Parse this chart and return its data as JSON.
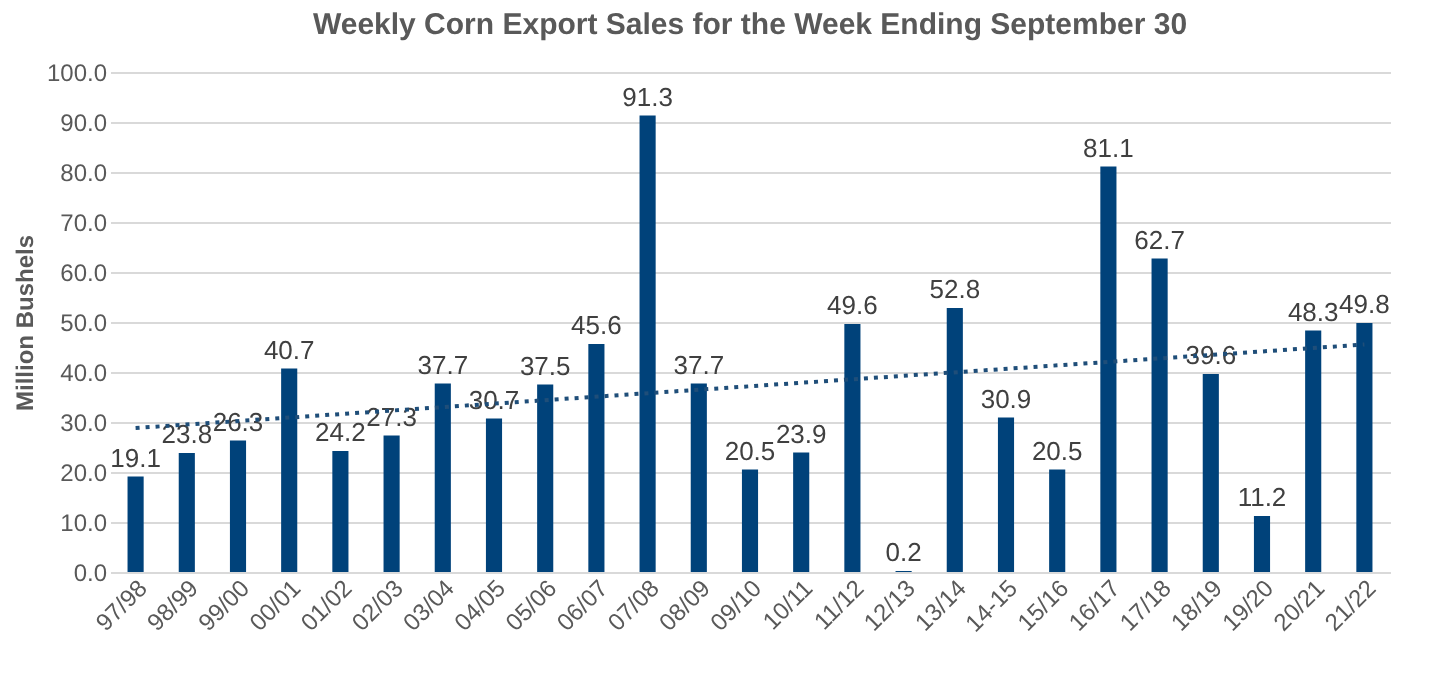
{
  "chart_data": {
    "type": "bar",
    "title": "Weekly Corn Export Sales for the Week Ending September 30",
    "ylabel": "Million Bushels",
    "categories": [
      "97/98",
      "98/99",
      "99/00",
      "00/01",
      "01/02",
      "02/03",
      "03/04",
      "04/05",
      "05/06",
      "06/07",
      "07/08",
      "08/09",
      "09/10",
      "10/11",
      "11/12",
      "12/13",
      "13/14",
      "14-15",
      "15/16",
      "16/17",
      "17/18",
      "18/19",
      "19/20",
      "20/21",
      "21/22"
    ],
    "series": [
      {
        "color": "#00427a",
        "values": [
          19.1,
          23.8,
          26.3,
          40.7,
          24.2,
          27.3,
          37.7,
          30.7,
          37.5,
          45.6,
          91.3,
          37.7,
          20.5,
          23.9,
          49.6,
          0.2,
          52.8,
          30.9,
          20.5,
          81.1,
          62.7,
          39.6,
          11.2,
          48.3,
          49.8
        ],
        "value_labels": [
          "19.1",
          "23.8",
          "26.3",
          "40.7",
          "24.2",
          "27.3",
          "37.7",
          "30.7",
          "37.5",
          "45.6",
          "91.3",
          "37.7",
          "20.5",
          "23.9",
          "49.6",
          "0.2",
          "52.8",
          "30.9",
          "20.5",
          "81.1",
          "62.7",
          "39.6",
          "11.2",
          "48.3",
          "49.8"
        ]
      },
      {
        "type": "line",
        "color": "#1f4e79",
        "line_style": "dotted",
        "x": [
          "97/98",
          "21/22"
        ],
        "values": [
          28.8,
          45.5
        ]
      }
    ],
    "ylim": [
      0,
      100
    ],
    "yticks": [
      {
        "value": 0,
        "label": "0.0"
      },
      {
        "value": 10,
        "label": "10.0"
      },
      {
        "value": 20,
        "label": "20.0"
      },
      {
        "value": 30,
        "label": "30.0"
      },
      {
        "value": 40,
        "label": "40.0"
      },
      {
        "value": 50,
        "label": "50.0"
      },
      {
        "value": 60,
        "label": "60.0"
      },
      {
        "value": 70,
        "label": "70.0"
      },
      {
        "value": 80,
        "label": "80.0"
      },
      {
        "value": 90,
        "label": "90.0"
      },
      {
        "value": 100,
        "label": "100.0"
      }
    ],
    "grid": "y"
  }
}
